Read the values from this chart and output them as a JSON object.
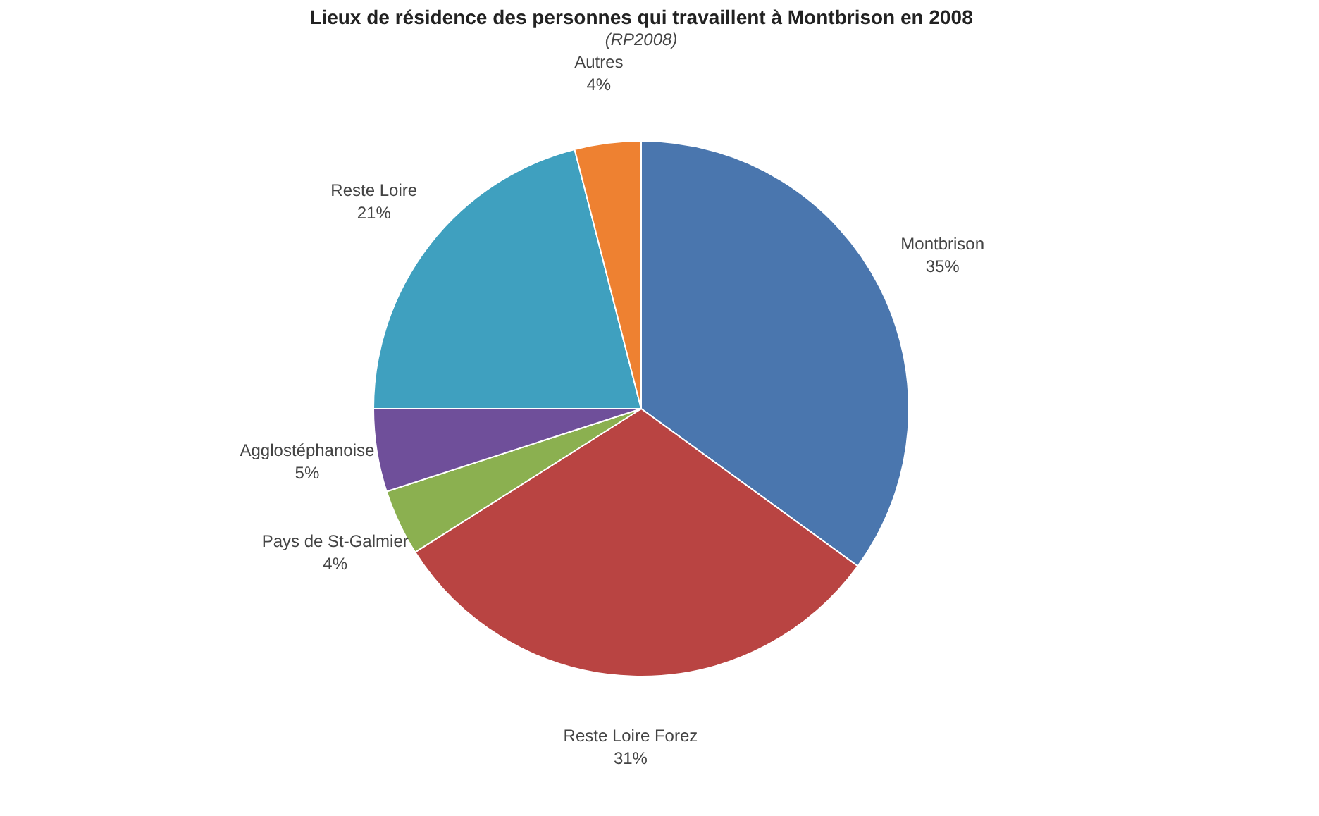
{
  "chart_data": {
    "type": "pie",
    "title": "Lieux de résidence des personnes qui travaillent à Montbrison en 2008",
    "subtitle": "(RP2008)",
    "categories": [
      "Montbrison",
      "Reste Loire Forez",
      "Pays de St-Galmier",
      "Agglostéphanoise",
      "Reste Loire",
      "Autres"
    ],
    "values": [
      35,
      31,
      4,
      5,
      21,
      4
    ],
    "value_labels": [
      "35%",
      "31%",
      "4%",
      "5%",
      "21%",
      "4%"
    ],
    "colors": [
      "#4a76ae",
      "#b94442",
      "#8bb050",
      "#6f4f9a",
      "#3fa0bf",
      "#ee8131"
    ],
    "legend": false
  }
}
